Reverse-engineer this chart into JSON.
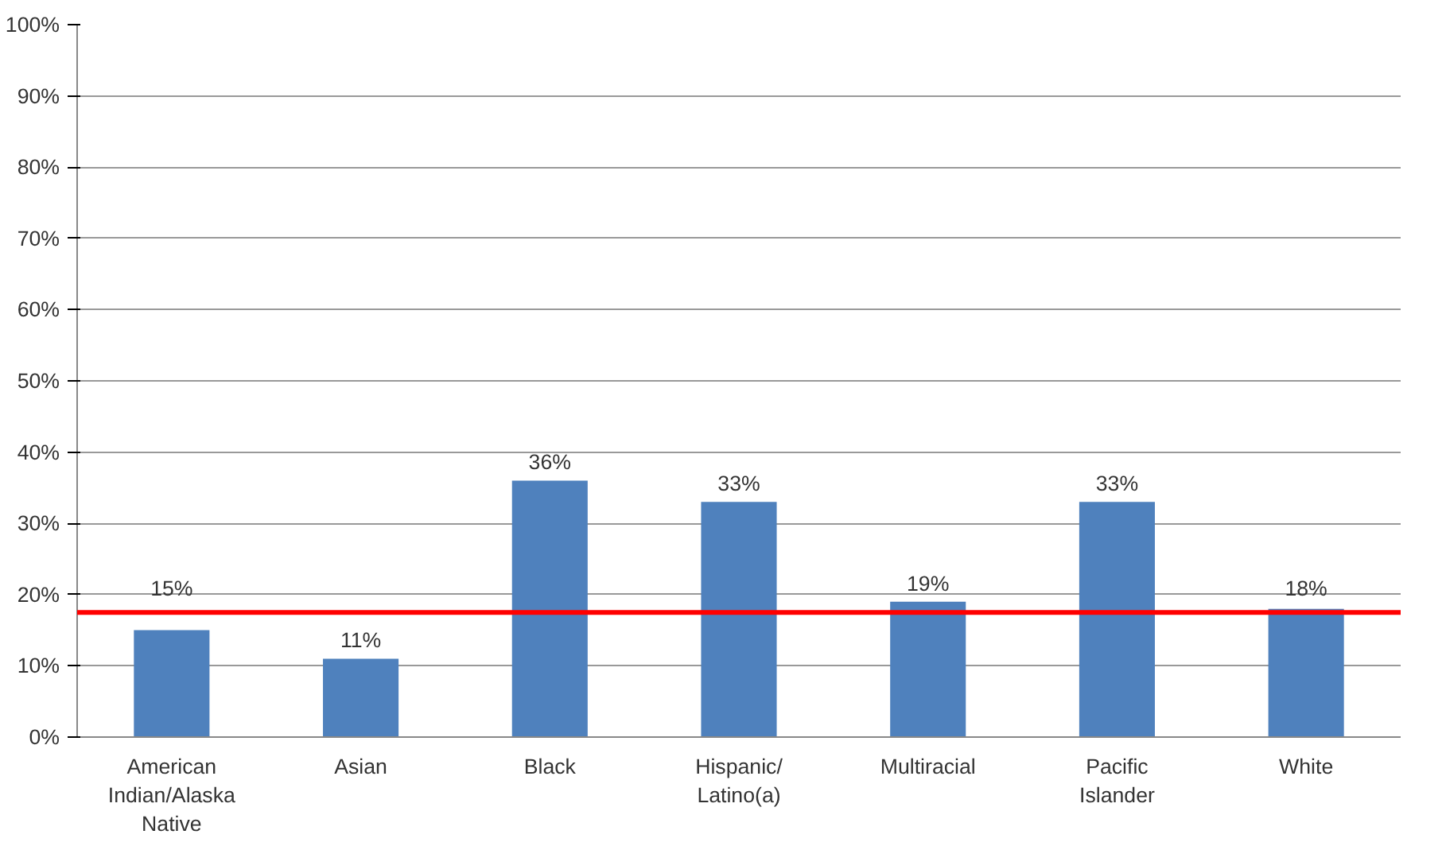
{
  "chart_data": {
    "type": "bar",
    "categories": [
      "American Indian/Alaska Native",
      "Asian",
      "Black",
      "Hispanic/Latino(a)",
      "Multiracial",
      "Pacific Islander",
      "White"
    ],
    "values": [
      15,
      11,
      36,
      33,
      19,
      33,
      18
    ],
    "color": "#4f81bd",
    "value_labels": [
      "15%",
      "11%",
      "36%",
      "33%",
      "19%",
      "33%",
      "18%"
    ],
    "ylim": [
      0,
      100
    ],
    "yticks": [
      {
        "value": 0,
        "label": "0%"
      },
      {
        "value": 10,
        "label": "10%"
      },
      {
        "value": 20,
        "label": "20%"
      },
      {
        "value": 30,
        "label": "30%"
      },
      {
        "value": 40,
        "label": "40%"
      },
      {
        "value": 50,
        "label": "50%"
      },
      {
        "value": 60,
        "label": "60%"
      },
      {
        "value": 70,
        "label": "70%"
      },
      {
        "value": 80,
        "label": "80%"
      },
      {
        "value": 90,
        "label": "90%"
      },
      {
        "value": 100,
        "label": "100%"
      }
    ],
    "grid": "y",
    "ref_lines": [
      {
        "axis": "y",
        "value": 17.5,
        "color": "#ff0000"
      }
    ]
  }
}
